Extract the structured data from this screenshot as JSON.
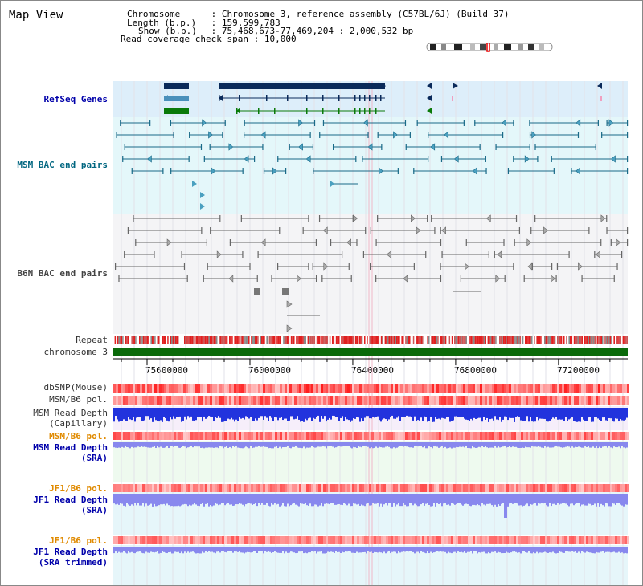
{
  "page": {
    "title": "Map View"
  },
  "header": {
    "rows": [
      {
        "key": "Chromosome",
        "value": "Chromosome 3, reference assembly (C57BL/6J) (Build 37)"
      },
      {
        "key": "Length (b.p.)",
        "value": "159,599,783"
      },
      {
        "key": "Show (b.p.)",
        "value": "75,468,673-77,469,204 : 2,000,532 bp"
      },
      {
        "key": "Read coverage check span",
        "value": "10,000"
      }
    ]
  },
  "tracks": [
    {
      "id": "refseq",
      "label": "RefSeq Genes",
      "color": "#0000aa"
    },
    {
      "id": "msm_bac",
      "label": "MSM BAC end pairs",
      "color": "#006680"
    },
    {
      "id": "b6n_bac",
      "label": "B6N BAC end pairs",
      "color": "#444444"
    },
    {
      "id": "repeat",
      "label": "Repeat",
      "color": "#333333"
    },
    {
      "id": "chromosome",
      "label": "chromosome 3",
      "color": "#333333"
    },
    {
      "id": "dbsnp",
      "label": "dbSNP(Mouse)",
      "color": "#333333"
    },
    {
      "id": "msm_pol",
      "label": "MSM/B6 pol.",
      "color": "#333333"
    },
    {
      "id": "msm_depth_cap",
      "label": "MSM Read Depth\n(Capillary)",
      "color": "#333333"
    },
    {
      "id": "msm_pol2",
      "label": "MSM/B6 pol.",
      "color": "#e08a00"
    },
    {
      "id": "msm_depth_sra",
      "label": "MSM Read Depth\n(SRA)",
      "color": "#0000aa"
    },
    {
      "id": "jf1_pol",
      "label": "JF1/B6 pol.",
      "color": "#e08a00"
    },
    {
      "id": "jf1_depth_sra",
      "label": "JF1 Read Depth\n(SRA)",
      "color": "#0000aa"
    },
    {
      "id": "jf1_pol2",
      "label": "JF1/B6 pol.",
      "color": "#e08a00"
    },
    {
      "id": "jf1_depth_trim",
      "label": "JF1 Read Depth\n(SRA trimmed)",
      "color": "#0000aa"
    }
  ],
  "axis": {
    "ticks": [
      "75600000",
      "76000000",
      "76400000",
      "76800000",
      "77200000"
    ],
    "tick_values": [
      75600000,
      76000000,
      76400000,
      76800000,
      77200000
    ],
    "range": [
      75468673,
      77469204
    ]
  },
  "colors": {
    "refseq_bg": "#ddeefa",
    "msm_bg": "#e4f7fa",
    "b6n_bg": "#f4f4f6",
    "dark_gene": "#0a2a5a",
    "mid_gene": "#4a90bb",
    "green_gene": "#0a7a0a",
    "chromosome_bar": "#0a6a0a",
    "depth_blue": "#2233dd",
    "depth_light": "#8888ee",
    "pol_red": "#ee4444"
  }
}
